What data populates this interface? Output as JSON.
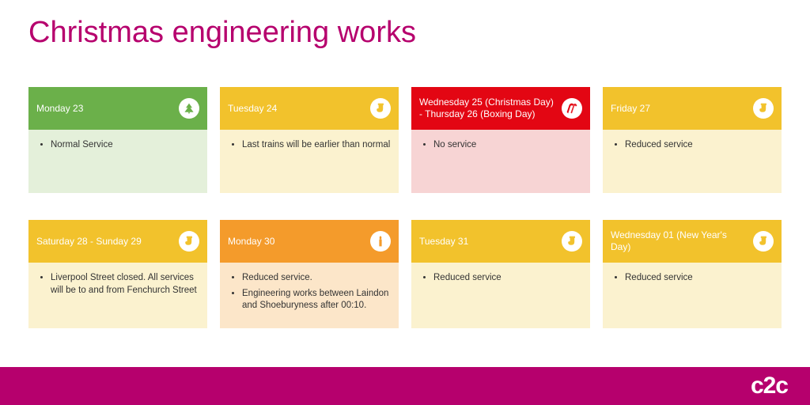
{
  "title": "Christmas engineering works",
  "colors": {
    "brand": "#b6006d",
    "green_header": "#6bb04a",
    "green_body": "#e4f0da",
    "amber_header": "#f2c22c",
    "amber_body": "#fbf2cf",
    "red_header": "#e30613",
    "red_body": "#f7d4d4",
    "orange_header": "#f49b2b",
    "orange_body": "#fce6c9"
  },
  "cards": [
    {
      "day": "Monday 23",
      "header_bg": "#6bb04a",
      "body_bg": "#e4f0da",
      "icon": "tree",
      "icon_color": "#6bb04a",
      "items": [
        "Normal Service"
      ]
    },
    {
      "day": "Tuesday 24",
      "header_bg": "#f2c22c",
      "body_bg": "#fbf2cf",
      "icon": "stocking",
      "icon_color": "#f2c22c",
      "items": [
        "Last trains will be earlier than normal"
      ]
    },
    {
      "day": "Wednesday 25 (Christmas Day) - Thursday 26 (Boxing Day)",
      "header_bg": "#e30613",
      "body_bg": "#f7d4d4",
      "icon": "candycane",
      "icon_color": "#e30613",
      "items": [
        "No service"
      ]
    },
    {
      "day": "Friday 27",
      "header_bg": "#f2c22c",
      "body_bg": "#fbf2cf",
      "icon": "stocking",
      "icon_color": "#f2c22c",
      "items": [
        "Reduced service"
      ]
    },
    {
      "day": "Saturday 28 - Sunday 29",
      "header_bg": "#f2c22c",
      "body_bg": "#fbf2cf",
      "icon": "stocking",
      "icon_color": "#f2c22c",
      "items": [
        "Liverpool Street closed. All services will be  to and from Fenchurch Street"
      ]
    },
    {
      "day": "Monday 30",
      "header_bg": "#f49b2b",
      "body_bg": "#fce6c9",
      "icon": "candle",
      "icon_color": "#f49b2b",
      "items": [
        "Reduced service.",
        "Engineering works between Laindon and Shoeburyness after 00:10."
      ]
    },
    {
      "day": "Tuesday 31",
      "header_bg": "#f2c22c",
      "body_bg": "#fbf2cf",
      "icon": "stocking",
      "icon_color": "#f2c22c",
      "items": [
        "Reduced service"
      ]
    },
    {
      "day": "Wednesday 01 (New Year's Day)",
      "header_bg": "#f2c22c",
      "body_bg": "#fbf2cf",
      "icon": "stocking",
      "icon_color": "#f2c22c",
      "items": [
        "Reduced service"
      ]
    }
  ],
  "logo_text": "c2c"
}
